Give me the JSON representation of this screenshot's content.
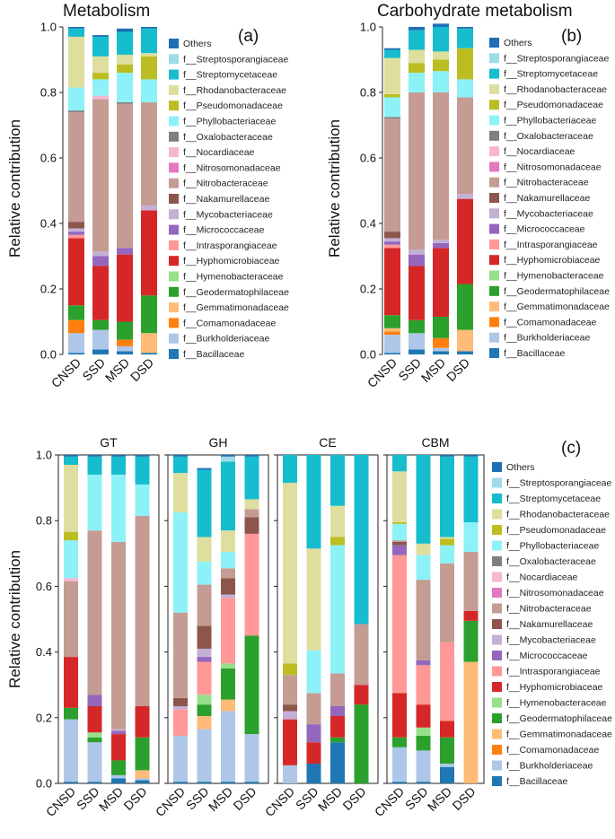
{
  "chart_data": {
    "type": "bar",
    "stacked": true,
    "ylabel": "Relative contribution",
    "ylim": [
      0,
      1.0
    ],
    "yticks": [
      "0.0",
      "0.2",
      "0.4",
      "0.6",
      "0.8",
      "1.0"
    ],
    "categories": [
      "CNSD",
      "SSD",
      "MSD",
      "DSD"
    ],
    "legend": {
      "entries": [
        "Others",
        "f__Streptosporangiaceae",
        "f__Streptomycetaceae",
        "f__Rhodanobacteraceae",
        "f__Pseudomonadaceae",
        "f__Phyllobacteriaceae",
        "f__Oxalobacteraceae",
        "f__Nocardiaceae",
        "f__Nitrosomonadaceae",
        "f__Nitrobacteraceae",
        "f__Nakamurellaceae",
        "f__Mycobacteriaceae",
        "f__Micrococcaceae",
        "f__Intrasporangiaceae",
        "f__Hyphomicrobiaceae",
        "f__Hymenobacteraceae",
        "f__Geodermatophilaceae",
        "f__Gemmatimonadaceae",
        "f__Comamonadaceae",
        "f__Burkholderiaceae",
        "f__Bacillaceae"
      ],
      "colors": [
        "#1f6fb4",
        "#9fdbe8",
        "#16bdce",
        "#dede9e",
        "#bcbd22",
        "#8cf2f8",
        "#7f7f7f",
        "#f7b6d2",
        "#e377c2",
        "#c49c94",
        "#8c564b",
        "#c5b0d5",
        "#9467bd",
        "#ff9896",
        "#d62728",
        "#98df8a",
        "#2ca02c",
        "#ffbb78",
        "#ff7f0e",
        "#aec7e8",
        "#1f77b4"
      ]
    },
    "series_order_bottom_to_top": [
      "f__Bacillaceae",
      "f__Burkholderiaceae",
      "f__Comamonadaceae",
      "f__Gemmatimonadaceae",
      "f__Geodermatophilaceae",
      "f__Hymenobacteraceae",
      "f__Hyphomicrobiaceae",
      "f__Intrasporangiaceae",
      "f__Micrococcaceae",
      "f__Mycobacteriaceae",
      "f__Nakamurellaceae",
      "f__Nitrobacteraceae",
      "f__Nitrosomonadaceae",
      "f__Nocardiaceae",
      "f__Oxalobacteraceae",
      "f__Phyllobacteriaceae",
      "f__Pseudomonadaceae",
      "f__Rhodanobacteraceae",
      "f__Streptomycetaceae",
      "f__Streptosporangiaceae",
      "Others"
    ],
    "charts": [
      {
        "id": "a",
        "title": "Metabolism",
        "panel_label": "(a)",
        "bars": {
          "CNSD": {
            "f__Bacillaceae": 0.005,
            "f__Burkholderiaceae": 0.06,
            "f__Comamonadaceae": 0.04,
            "f__Geodermatophilaceae": 0.045,
            "f__Hyphomicrobiaceae": 0.205,
            "f__Intrasporangiaceae": 0.01,
            "f__Micrococcaceae": 0.01,
            "f__Mycobacteriaceae": 0.01,
            "f__Nakamurellaceae": 0.02,
            "f__Nitrobacteraceae": 0.335,
            "f__Oxalobacteraceae": 0.005,
            "f__Phyllobacteriaceae": 0.07,
            "f__Rhodanobacteraceae": 0.155,
            "f__Streptomycetaceae": 0.025,
            "Others": 0.005
          },
          "SSD": {
            "f__Bacillaceae": 0.015,
            "f__Burkholderiaceae": 0.06,
            "f__Geodermatophilaceae": 0.03,
            "f__Hyphomicrobiaceae": 0.165,
            "f__Micrococcaceae": 0.03,
            "f__Mycobacteriaceae": 0.015,
            "f__Nitrobacteraceae": 0.465,
            "f__Nocardiaceae": 0.01,
            "f__Phyllobacteriaceae": 0.05,
            "f__Rhodanobacteraceae": 0.05,
            "f__Pseudomonadaceae": 0.02,
            "f__Streptomycetaceae": 0.06,
            "Others": 0.005
          },
          "MSD": {
            "f__Bacillaceae": 0.01,
            "f__Burkholderiaceae": 0.015,
            "f__Comamonadaceae": 0.02,
            "f__Geodermatophilaceae": 0.055,
            "f__Hyphomicrobiaceae": 0.205,
            "f__Micrococcaceae": 0.02,
            "f__Nitrobacteraceae": 0.44,
            "f__Oxalobacteraceae": 0.005,
            "f__Phyllobacteriaceae": 0.09,
            "f__Pseudomonadaceae": 0.025,
            "f__Rhodanobacteraceae": 0.03,
            "f__Streptomycetaceae": 0.07,
            "Others": 0.01
          },
          "DSD": {
            "f__Bacillaceae": 0.005,
            "f__Gemmatimonadaceae": 0.06,
            "f__Geodermatophilaceae": 0.115,
            "f__Hyphomicrobiaceae": 0.26,
            "f__Mycobacteriaceae": 0.015,
            "f__Nitrobacteraceae": 0.315,
            "f__Phyllobacteriaceae": 0.07,
            "f__Rhodanobacteraceae": 0.01,
            "f__Pseudomonadaceae": 0.07,
            "f__Streptomycetaceae": 0.075,
            "Others": 0.005
          }
        }
      },
      {
        "id": "b",
        "title": "Carbohydrate metabolism",
        "panel_label": "(b)",
        "bars": {
          "CNSD": {
            "f__Bacillaceae": 0.005,
            "f__Burkholderiaceae": 0.055,
            "f__Comamonadaceae": 0.01,
            "f__Gemmatimonadaceae": 0.01,
            "f__Geodermatophilaceae": 0.04,
            "f__Hyphomicrobiaceae": 0.205,
            "f__Intrasporangiaceae": 0.01,
            "f__Micrococcaceae": 0.01,
            "f__Mycobacteriaceae": 0.01,
            "f__Nakamurellaceae": 0.02,
            "f__Nitrobacteraceae": 0.345,
            "f__Oxalobacteraceae": 0.005,
            "f__Phyllobacteriaceae": 0.06,
            "f__Pseudomonadaceae": 0.01,
            "f__Rhodanobacteraceae": 0.11,
            "f__Streptomycetaceae": 0.025,
            "Others": 0.005
          },
          "SSD": {
            "f__Bacillaceae": 0.015,
            "f__Burkholderiaceae": 0.05,
            "f__Geodermatophilaceae": 0.04,
            "f__Hyphomicrobiaceae": 0.165,
            "f__Micrococcaceae": 0.035,
            "f__Mycobacteriaceae": 0.015,
            "f__Nitrobacteraceae": 0.48,
            "f__Phyllobacteriaceae": 0.06,
            "f__Pseudomonadaceae": 0.03,
            "f__Rhodanobacteraceae": 0.04,
            "f__Streptomycetaceae": 0.06,
            "Others": 0.01
          },
          "MSD": {
            "f__Bacillaceae": 0.01,
            "f__Burkholderiaceae": 0.01,
            "f__Comamonadaceae": 0.03,
            "f__Geodermatophilaceae": 0.065,
            "f__Hyphomicrobiaceae": 0.21,
            "f__Micrococcaceae": 0.015,
            "f__Mycobacteriaceae": 0.01,
            "f__Nitrobacteraceae": 0.45,
            "f__Phyllobacteriaceae": 0.065,
            "f__Pseudomonadaceae": 0.035,
            "f__Rhodanobacteraceae": 0.025,
            "f__Streptomycetaceae": 0.075,
            "Others": 0.01
          },
          "DSD": {
            "f__Bacillaceae": 0.01,
            "f__Gemmatimonadaceae": 0.065,
            "f__Geodermatophilaceae": 0.14,
            "f__Hyphomicrobiaceae": 0.26,
            "f__Mycobacteriaceae": 0.015,
            "f__Nitrobacteraceae": 0.295,
            "f__Phyllobacteriaceae": 0.055,
            "f__Pseudomonadaceae": 0.095,
            "f__Streptomycetaceae": 0.06,
            "Others": 0.005
          }
        }
      },
      {
        "id": "GT",
        "title": "GT",
        "bars": {
          "CNSD": {
            "f__Bacillaceae": 0.005,
            "f__Burkholderiaceae": 0.19,
            "f__Geodermatophilaceae": 0.035,
            "f__Hyphomicrobiaceae": 0.155,
            "f__Nitrobacteraceae": 0.23,
            "f__Nocardiaceae": 0.01,
            "f__Phyllobacteriaceae": 0.115,
            "f__Pseudomonadaceae": 0.025,
            "f__Rhodanobacteraceae": 0.205,
            "f__Streptomycetaceae": 0.025,
            "Others": 0.005
          },
          "SSD": {
            "f__Bacillaceae": 0.005,
            "f__Burkholderiaceae": 0.12,
            "f__Hymenobacteraceae": 0.015,
            "f__Geodermatophilaceae": 0.015,
            "f__Hyphomicrobiaceae": 0.08,
            "f__Micrococcaceae": 0.035,
            "f__Nitrobacteraceae": 0.5,
            "f__Phyllobacteriaceae": 0.17,
            "f__Streptomycetaceae": 0.055,
            "Others": 0.005
          },
          "MSD": {
            "f__Bacillaceae": 0.015,
            "f__Burkholderiaceae": 0.01,
            "f__Geodermatophilaceae": 0.045,
            "f__Hyphomicrobiaceae": 0.08,
            "f__Micrococcaceae": 0.01,
            "f__Mycobacteriaceae": 0.005,
            "f__Nitrobacteraceae": 0.57,
            "f__Phyllobacteriaceae": 0.205,
            "f__Streptomycetaceae": 0.055,
            "Others": 0.005
          },
          "DSD": {
            "f__Bacillaceae": 0.01,
            "f__Burkholderiaceae": 0.005,
            "f__Gemmatimonadaceae": 0.025,
            "f__Geodermatophilaceae": 0.1,
            "f__Hyphomicrobiaceae": 0.095,
            "f__Nitrobacteraceae": 0.58,
            "f__Phyllobacteriaceae": 0.095,
            "f__Streptomycetaceae": 0.085,
            "Others": 0.005
          }
        }
      },
      {
        "id": "GH",
        "title": "GH",
        "bars": {
          "CNSD": {
            "f__Bacillaceae": 0.005,
            "f__Burkholderiaceae": 0.14,
            "f__Intrasporangiaceae": 0.08,
            "f__Mycobacteriaceae": 0.01,
            "f__Nakamurellaceae": 0.025,
            "f__Nitrobacteraceae": 0.26,
            "f__Phyllobacteriaceae": 0.305,
            "f__Rhodanobacteraceae": 0.12,
            "f__Streptomycetaceae": 0.05,
            "Others": 0.005
          },
          "SSD": {
            "f__Bacillaceae": 0.005,
            "f__Burkholderiaceae": 0.16,
            "f__Gemmatimonadaceae": 0.04,
            "f__Geodermatophilaceae": 0.035,
            "f__Hymenobacteraceae": 0.03,
            "f__Intrasporangiaceae": 0.1,
            "f__Micrococcaceae": 0.015,
            "f__Mycobacteriaceae": 0.025,
            "f__Nakamurellaceae": 0.07,
            "f__Nitrobacteraceae": 0.125,
            "f__Phyllobacteriaceae": 0.07,
            "f__Rhodanobacteraceae": 0.075,
            "f__Streptomycetaceae": 0.205,
            "Others": 0.005
          },
          "MSD": {
            "f__Bacillaceae": 0.005,
            "f__Burkholderiaceae": 0.215,
            "f__Gemmatimonadaceae": 0.035,
            "f__Geodermatophilaceae": 0.095,
            "f__Hymenobacteraceae": 0.015,
            "f__Intrasporangiaceae": 0.2,
            "f__Mycobacteriaceae": 0.01,
            "f__Nakamurellaceae": 0.05,
            "f__Nitrobacteraceae": 0.03,
            "f__Phyllobacteriaceae": 0.05,
            "f__Rhodanobacteraceae": 0.065,
            "f__Streptomycetaceae": 0.21,
            "f__Streptosporangiaceae": 0.015,
            "Others": 0.005
          },
          "DSD": {
            "f__Bacillaceae": 0.005,
            "f__Burkholderiaceae": 0.145,
            "f__Geodermatophilaceae": 0.3,
            "f__Intrasporangiaceae": 0.31,
            "f__Nakamurellaceae": 0.05,
            "f__Nitrobacteraceae": 0.025,
            "f__Rhodanobacteraceae": 0.03,
            "f__Streptomycetaceae": 0.13,
            "Others": 0.005
          }
        }
      },
      {
        "id": "CE",
        "title": "CE",
        "bars": {
          "CNSD": {
            "f__Burkholderiaceae": 0.055,
            "f__Hyphomicrobiaceae": 0.14,
            "f__Mycobacteriaceae": 0.025,
            "f__Nakamurellaceae": 0.02,
            "f__Nitrobacteraceae": 0.09,
            "f__Pseudomonadaceae": 0.035,
            "f__Rhodanobacteraceae": 0.55,
            "f__Streptomycetaceae": 0.085
          },
          "SSD": {
            "f__Bacillaceae": 0.06,
            "f__Hyphomicrobiaceae": 0.065,
            "f__Micrococcaceae": 0.055,
            "f__Nitrobacteraceae": 0.095,
            "f__Phyllobacteriaceae": 0.13,
            "f__Rhodanobacteraceae": 0.31,
            "f__Streptomycetaceae": 0.285
          },
          "MSD": {
            "f__Bacillaceae": 0.125,
            "f__Geodermatophilaceae": 0.015,
            "f__Hyphomicrobiaceae": 0.065,
            "f__Micrococcaceae": 0.03,
            "f__Nitrobacteraceae": 0.1,
            "f__Phyllobacteriaceae": 0.39,
            "f__Pseudomonadaceae": 0.025,
            "f__Rhodanobacteraceae": 0.095,
            "f__Streptomycetaceae": 0.155
          },
          "DSD": {
            "f__Geodermatophilaceae": 0.24,
            "f__Hyphomicrobiaceae": 0.06,
            "f__Nitrobacteraceae": 0.185,
            "f__Streptomycetaceae": 0.515
          }
        }
      },
      {
        "id": "CBM",
        "title": "CBM",
        "panel_label": "(c)",
        "bars": {
          "CNSD": {
            "f__Bacillaceae": 0.005,
            "f__Burkholderiaceae": 0.105,
            "f__Geodermatophilaceae": 0.03,
            "f__Hyphomicrobiaceae": 0.135,
            "f__Intrasporangiaceae": 0.42,
            "f__Micrococcaceae": 0.03,
            "f__Nakamurellaceae": 0.01,
            "f__Nitrobacteraceae": 0.005,
            "f__Pseudomonadaceae": 0.005,
            "f__Phyllobacteriaceae": 0.05,
            "f__Rhodanobacteraceae": 0.155,
            "f__Streptomycetaceae": 0.05
          },
          "SSD": {
            "f__Bacillaceae": 0.005,
            "f__Burkholderiaceae": 0.095,
            "f__Geodermatophilaceae": 0.045,
            "f__Hymenobacteraceae": 0.025,
            "f__Hyphomicrobiaceae": 0.07,
            "f__Intrasporangiaceae": 0.12,
            "f__Nitrobacteraceae": 0.245,
            "f__Micrococcaceae": 0.015,
            "f__Phyllobacteriaceae": 0.075,
            "f__Rhodanobacteraceae": 0.035,
            "f__Streptomycetaceae": 0.27
          },
          "MSD": {
            "f__Bacillaceae": 0.05,
            "f__Burkholderiaceae": 0.01,
            "f__Geodermatophilaceae": 0.08,
            "f__Hyphomicrobiaceae": 0.05,
            "f__Intrasporangiaceae": 0.24,
            "f__Nitrobacteraceae": 0.24,
            "f__Phyllobacteriaceae": 0.055,
            "f__Pseudomonadaceae": 0.02,
            "f__Rhodanobacteraceae": 0.005,
            "f__Streptomycetaceae": 0.245,
            "Others": 0.005
          },
          "DSD": {
            "f__Gemmatimonadaceae": 0.37,
            "f__Geodermatophilaceae": 0.125,
            "f__Hyphomicrobiaceae": 0.03,
            "f__Nitrobacteraceae": 0.18,
            "f__Phyllobacteriaceae": 0.09,
            "f__Streptomycetaceae": 0.2,
            "Others": 0.005
          }
        }
      }
    ]
  }
}
